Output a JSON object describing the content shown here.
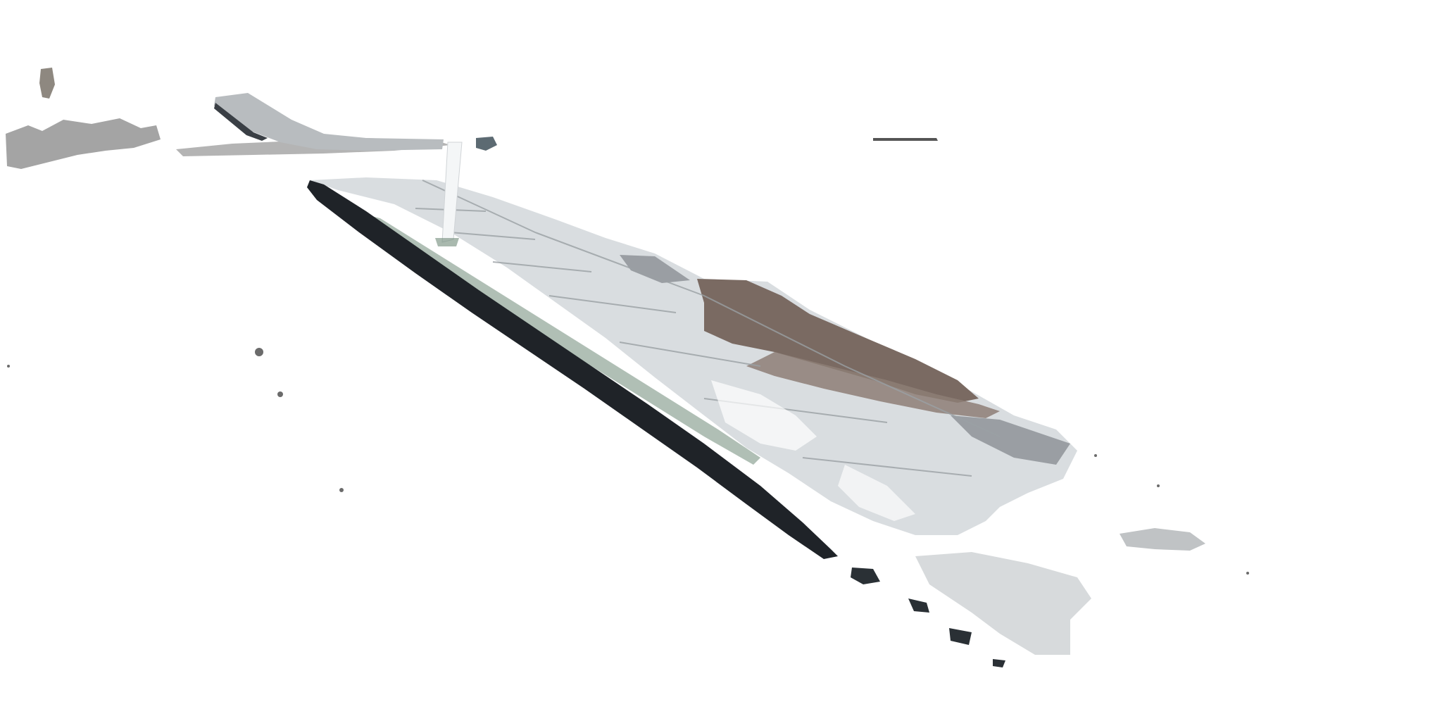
{
  "image": {
    "kind": "segmented street-level photo",
    "background_color": "#ffffff",
    "palette": {
      "sidewalk_light": "#d9dde0",
      "sidewalk_mid": "#c9cdd0",
      "shadow_brown": "#7a6a62",
      "curb_dark": "#1f2328",
      "curb_edge": "#3a3f45",
      "grass": "#6f8a78",
      "far_ground": "#9a9a9a",
      "grate": "#8a8f93",
      "pole": "#f4f6f7"
    }
  }
}
